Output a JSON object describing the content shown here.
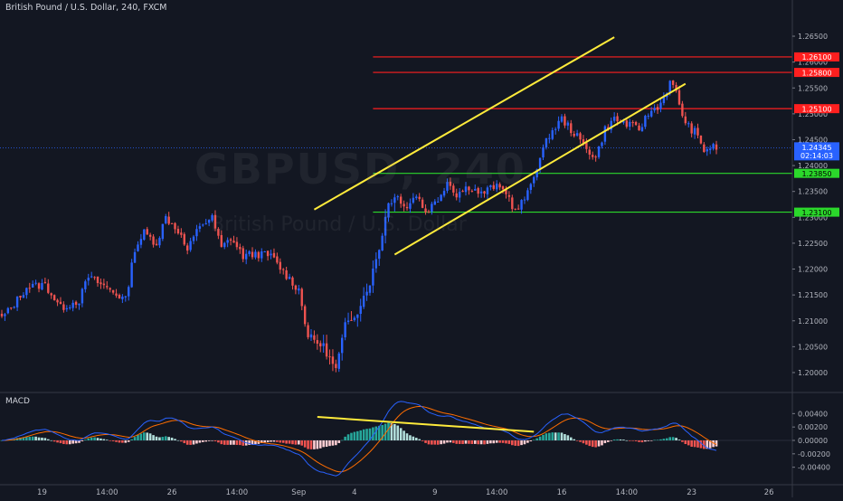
{
  "header": {
    "title": "British Pound / U.S. Dollar, 240, FXCM"
  },
  "watermark": {
    "symbol": "GBPUSD, 240",
    "description": "British Pound / U.S. Dollar"
  },
  "colors": {
    "background": "#131722",
    "up": "#2962ff",
    "down": "#ef5350",
    "resistance": "#ff1f1f",
    "support": "#2bd82b",
    "trendline": "#ffeb3b",
    "current_price": "#2962ff",
    "macd_line": "#2962ff",
    "signal_line": "#ff6d00",
    "hist_up_strong": "#26a69a",
    "hist_up_weak": "#b2dfdb",
    "hist_down_strong": "#ef5350",
    "hist_down_weak": "#ffcdd2"
  },
  "chart_data": [
    {
      "type": "candlestick",
      "title": "British Pound / U.S. Dollar, 240, FXCM",
      "xlabel": "",
      "ylabel": "",
      "x_ticks": [
        "19",
        "14:00",
        "26",
        "14:00",
        "Sep",
        "4",
        "9",
        "14:00",
        "16",
        "14:00",
        "23",
        "26"
      ],
      "y_ticks": [
        "1.26500",
        "1.26000",
        "1.25500",
        "1.25000",
        "1.24500",
        "1.24000",
        "1.23500",
        "1.23000",
        "1.22500",
        "1.22000",
        "1.21500",
        "1.21000",
        "1.20500",
        "1.20000"
      ],
      "ylim": [
        1.1965,
        1.2685
      ],
      "grid": false,
      "ohlc_source": "estimated",
      "horizontal_levels": [
        {
          "price": 1.261,
          "label": "1.26100",
          "kind": "resistance"
        },
        {
          "price": 1.258,
          "label": "1.25800",
          "kind": "resistance"
        },
        {
          "price": 1.251,
          "label": "1.25100",
          "kind": "resistance"
        },
        {
          "price": 1.2385,
          "label": "1.23850",
          "kind": "support"
        },
        {
          "price": 1.231,
          "label": "1.23100",
          "kind": "support"
        }
      ],
      "current_price": {
        "label": "1.24345",
        "countdown": "02:14:03",
        "price": 1.24345
      },
      "trendlines": [
        {
          "from": {
            "bar": 101,
            "price": 1.2315
          },
          "to": {
            "bar": 198,
            "price": 1.2648
          }
        },
        {
          "from": {
            "bar": 127,
            "price": 1.2228
          },
          "to": {
            "bar": 221,
            "price": 1.2558
          }
        }
      ]
    },
    {
      "type": "macd",
      "title": "MACD",
      "y_ticks": [
        "0.00400",
        "0.00200",
        "0.00000",
        "-0.00200",
        "-0.00400"
      ],
      "ylim": [
        -0.0058,
        0.0058
      ],
      "series": [
        {
          "name": "MACD"
        },
        {
          "name": "Signal"
        },
        {
          "name": "Histogram"
        }
      ],
      "trendline": {
        "from": {
          "bar": 102,
          "value": 0.0035
        },
        "to": {
          "bar": 172,
          "value": 0.0013
        }
      }
    }
  ]
}
